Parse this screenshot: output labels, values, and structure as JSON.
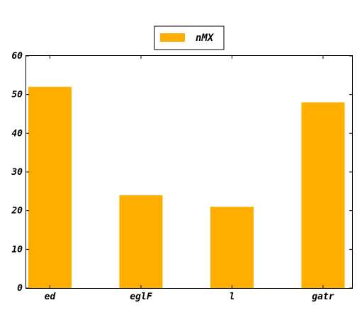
{
  "chart_data": {
    "type": "bar",
    "categories": [
      "ed",
      "eglF",
      "l",
      "gatr"
    ],
    "series": [
      {
        "name": "nMX",
        "values": [
          52,
          24,
          21,
          48
        ],
        "color": "#ffae00"
      }
    ],
    "ylim": [
      0,
      60
    ],
    "yticks": [
      0,
      10,
      20,
      30,
      40,
      50,
      60
    ],
    "grid": false,
    "legend_position": "top-center"
  }
}
